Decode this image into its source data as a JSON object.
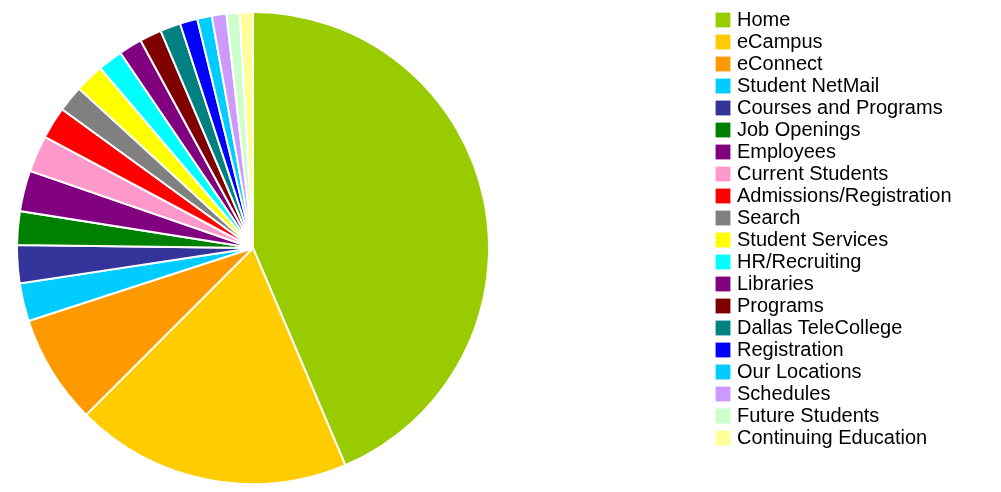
{
  "chart_data": {
    "type": "pie",
    "categories": [
      "Home",
      "eCampus",
      "eConnect",
      "Student NetMail",
      "Courses and Programs",
      "Job Openings",
      "Employees",
      "Current Students",
      "Admissions/Registration",
      "Search",
      "Student Services",
      "HR/Recruiting",
      "Libraries",
      "Programs",
      "Dallas TeleCollege",
      "Registration",
      "Our Locations",
      "Schedules",
      "Future Students",
      "Continuing Education"
    ],
    "values": [
      43.6,
      18.9,
      7.5,
      2.6,
      2.6,
      2.3,
      2.8,
      2.5,
      2.2,
      1.8,
      2.0,
      1.7,
      1.6,
      1.5,
      1.4,
      1.2,
      1.0,
      1.0,
      0.9,
      0.9
    ],
    "colors": [
      "#99cc00",
      "#ffcc00",
      "#ff9900",
      "#00ccff",
      "#333399",
      "#008000",
      "#800080",
      "#ff99cc",
      "#ff0000",
      "#808080",
      "#ffff00",
      "#00ffff",
      "#800080",
      "#800000",
      "#008080",
      "#0000ff",
      "#00ccff",
      "#cc99ff",
      "#ccffcc",
      "#ffff99"
    ],
    "legend": "right"
  }
}
